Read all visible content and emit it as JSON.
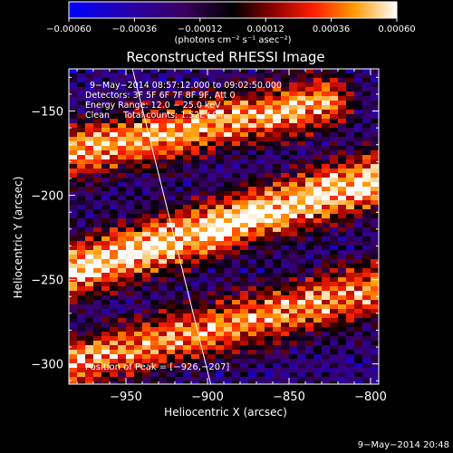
{
  "chart_data": {
    "type": "heatmap",
    "title": "Reconstructed RHESSI Image",
    "xlabel": "Heliocentric X (arcsec)",
    "ylabel": "Heliocentric Y (arcsec)",
    "xlim": [
      -985,
      -795
    ],
    "ylim": [
      -312,
      -125
    ],
    "x_ticks": [
      -950,
      -900,
      -850,
      -800
    ],
    "y_ticks": [
      -300,
      -250,
      -200,
      -150
    ],
    "x_tick_labels": [
      "−950",
      "−900",
      "−850",
      "−800"
    ],
    "y_tick_labels": [
      "−300",
      "−250",
      "−200",
      "−150"
    ],
    "colorbar": {
      "min": -0.0006,
      "max": 0.0006,
      "ticks": [
        -0.0006,
        -0.00036,
        -0.00012,
        0.00012,
        0.00036,
        0.0006
      ],
      "tick_labels": [
        "−0.00060",
        "−0.00036",
        "−0.00012",
        "0.00012",
        "0.00036",
        "0.00060"
      ],
      "unit_label": "(photons cm⁻² s⁻¹ asec⁻²)",
      "colors": [
        "#0000ff",
        "#3f007f",
        "#000000",
        "#7f0000",
        "#ff0000",
        "#ff8000",
        "#ffd000",
        "#ffffff"
      ]
    },
    "info_lines": [
      "9−May−2014 08:57:12.000 to 09:02:50.000",
      "Detectors: 3F 5F 6F 7F 8F 9F, Att 0",
      "Energy Range: 12.0 − 25.0 keV",
      "Clean     Total counts: 1.52E+04"
    ],
    "peak_label": "Position of Peak = [−926,−207]",
    "peak_position": [
      -926,
      -207
    ],
    "limb_line": [
      [
        -946,
        -125
      ],
      [
        -898,
        -312
      ]
    ],
    "colormap": "RHESSI red-temperature, blue for negative",
    "bright_bands": [
      {
        "description": "upper band",
        "from": [
          -985,
          -175
        ],
        "to": [
          -830,
          -145
        ],
        "level": 0.85
      },
      {
        "description": "middle band",
        "from": [
          -985,
          -245
        ],
        "to": [
          -795,
          -190
        ],
        "level": 1.0
      },
      {
        "description": "lower band",
        "from": [
          -985,
          -300
        ],
        "to": [
          -795,
          -255
        ],
        "level": 0.8
      }
    ]
  },
  "footer": {
    "timestamp": "9−May−2014 20:48"
  }
}
